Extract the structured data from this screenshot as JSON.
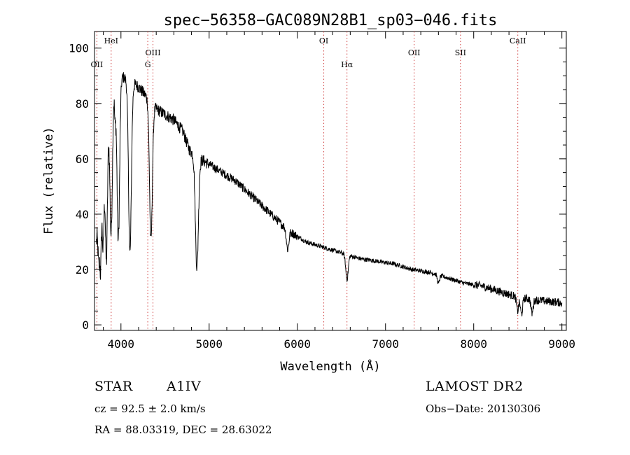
{
  "chart_data": {
    "type": "line",
    "title": "spec−56358−GAC089N28B1_sp03−046.fits",
    "xlabel": "Wavelength (Å)",
    "ylabel": "Flux (relative)",
    "xlim": [
      3700,
      9050
    ],
    "ylim": [
      -2,
      106
    ],
    "xticks": [
      4000,
      5000,
      6000,
      7000,
      8000,
      9000
    ],
    "xtick_labels": [
      "4000",
      "5000",
      "6000",
      "7000",
      "8000",
      "9000"
    ],
    "yticks": [
      0,
      20,
      40,
      60,
      80,
      100
    ],
    "ytick_labels": [
      "0",
      "20",
      "40",
      "60",
      "80",
      "100"
    ],
    "grid": false,
    "lines": [
      {
        "label": "OII",
        "x": 3727,
        "row": 2
      },
      {
        "label": "HeI",
        "x": 3889,
        "row": 1
      },
      {
        "label": "OIII",
        "x": 4363,
        "row": 1.5
      },
      {
        "label": "G",
        "x": 4304,
        "row": 2
      },
      {
        "label": "OI",
        "x": 6300,
        "row": 1
      },
      {
        "label": "Hα",
        "x": 6563,
        "row": 2
      },
      {
        "label": "OII",
        "x": 7325,
        "row": 1.5
      },
      {
        "label": "SII",
        "x": 7850,
        "row": 1.5
      },
      {
        "label": "CaII",
        "x": 8500,
        "row": 1
      }
    ],
    "continuum": [
      [
        3720,
        30
      ],
      [
        3800,
        58
      ],
      [
        3850,
        72
      ],
      [
        3900,
        86
      ],
      [
        3950,
        88
      ],
      [
        4000,
        90
      ],
      [
        4100,
        88
      ],
      [
        4200,
        86
      ],
      [
        4300,
        82
      ],
      [
        4400,
        78
      ],
      [
        4500,
        76
      ],
      [
        4600,
        74
      ],
      [
        4700,
        70
      ],
      [
        4780,
        63
      ],
      [
        4850,
        61
      ],
      [
        4950,
        59
      ],
      [
        5100,
        56
      ],
      [
        5300,
        52
      ],
      [
        5500,
        46
      ],
      [
        5700,
        40
      ],
      [
        5900,
        34
      ],
      [
        6100,
        30
      ],
      [
        6300,
        28
      ],
      [
        6500,
        26
      ],
      [
        6700,
        24
      ],
      [
        6900,
        23
      ],
      [
        7100,
        22
      ],
      [
        7300,
        20
      ],
      [
        7500,
        19
      ],
      [
        7700,
        17
      ],
      [
        7900,
        15
      ],
      [
        8100,
        14
      ],
      [
        8300,
        12
      ],
      [
        8500,
        10
      ],
      [
        8700,
        9
      ],
      [
        9000,
        8
      ]
    ],
    "absorption": [
      {
        "x": 3750,
        "depth": 18,
        "width": 10
      },
      {
        "x": 3770,
        "depth": 25,
        "width": 8
      },
      {
        "x": 3798,
        "depth": 30,
        "width": 10
      },
      {
        "x": 3835,
        "depth": 45,
        "width": 12
      },
      {
        "x": 3889,
        "depth": 50,
        "width": 14
      },
      {
        "x": 3933,
        "depth": 12,
        "width": 7
      },
      {
        "x": 3970,
        "depth": 58,
        "width": 15
      },
      {
        "x": 4102,
        "depth": 62,
        "width": 16
      },
      {
        "x": 4340,
        "depth": 50,
        "width": 16
      },
      {
        "x": 4861,
        "depth": 40,
        "width": 17
      },
      {
        "x": 5890,
        "depth": 7,
        "width": 14
      },
      {
        "x": 6563,
        "depth": 9,
        "width": 14
      },
      {
        "x": 7600,
        "depth": 3,
        "width": 12
      },
      {
        "x": 8498,
        "depth": 5,
        "width": 12
      },
      {
        "x": 8542,
        "depth": 6,
        "width": 12
      },
      {
        "x": 8662,
        "depth": 5,
        "width": 12
      }
    ]
  },
  "info": {
    "obj_class": "STAR",
    "subclass": "A1IV",
    "survey": "LAMOST DR2",
    "cz": "cz = 92.5 ± 2.0 km/s",
    "obs_date": "Obs−Date: 20130306",
    "radec": "RA =  88.03319, DEC =  28.63022"
  }
}
